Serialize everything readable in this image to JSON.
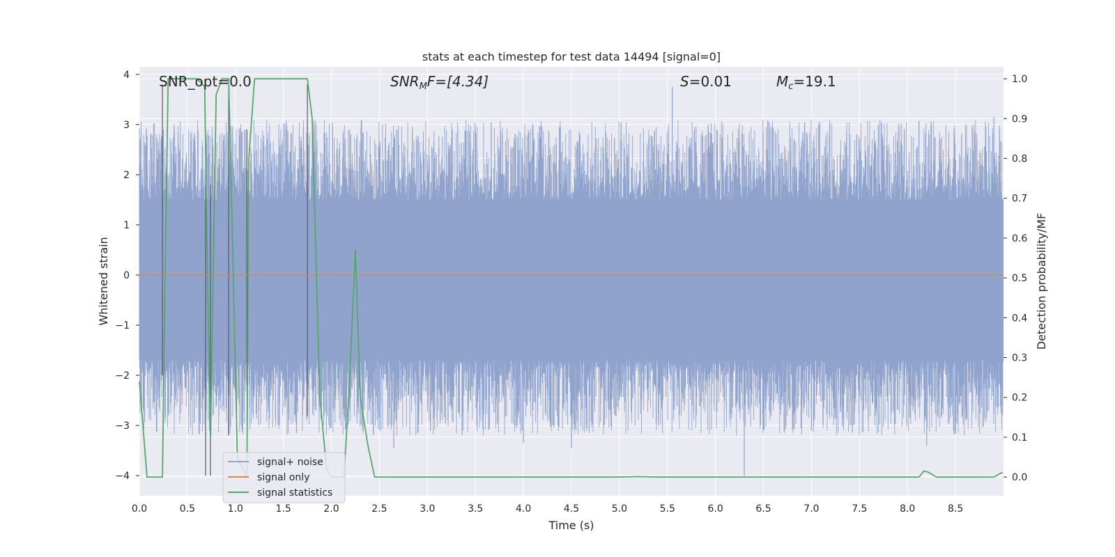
{
  "chart_data": {
    "type": "line",
    "title": "stats at each timestep for test data 14494 [signal=0]",
    "xlabel": "Time (s)",
    "ylabel": "Whitened strain",
    "ylabel_right": "Detection probability/MF",
    "xlim": [
      0.0,
      9.0
    ],
    "ylim": [
      -4.4,
      4.15
    ],
    "ylim_right": [
      -0.047,
      1.03
    ],
    "xticks": [
      0.0,
      0.5,
      1.0,
      1.5,
      2.0,
      2.5,
      3.0,
      3.5,
      4.0,
      4.5,
      5.0,
      5.5,
      6.0,
      6.5,
      7.0,
      7.5,
      8.0,
      8.5
    ],
    "xtick_labels": [
      "0.0",
      "0.5",
      "1.0",
      "1.5",
      "2.0",
      "2.5",
      "3.0",
      "3.5",
      "4.0",
      "4.5",
      "5.0",
      "5.5",
      "6.0",
      "6.5",
      "7.0",
      "7.5",
      "8.0",
      "8.5"
    ],
    "yticks": [
      4,
      3,
      2,
      1,
      0,
      -1,
      -2,
      -3,
      -4
    ],
    "ytick_labels": [
      "4",
      "3",
      "2",
      "1",
      "0",
      "−1",
      "−2",
      "−3",
      "−4"
    ],
    "yticks_right": [
      1.0,
      0.9,
      0.8,
      0.7,
      0.6,
      0.5,
      0.4,
      0.3,
      0.2,
      0.1,
      0.0
    ],
    "ytick_labels_right": [
      "1.0",
      "0.9",
      "0.8",
      "0.7",
      "0.6",
      "0.5",
      "0.4",
      "0.3",
      "0.2",
      "0.1",
      "0.0"
    ],
    "annotations": {
      "snr_opt": "SNR_opt=0.0",
      "snr_mf_prefix": "SNR",
      "snr_mf_sub": "M",
      "snr_mf_suffix": "F=[4.34]",
      "s_label": "S",
      "s_value": "=0.01",
      "mc_label": "M",
      "mc_sub": "c",
      "mc_value": "=19.1"
    },
    "legend": [
      "signal+ noise",
      "signal only",
      "signal statistics"
    ],
    "legend_loc": "lower-left",
    "noise": {
      "name": "signal+ noise",
      "color": "#8fa3cc",
      "core_min": -1.7,
      "core_max": 1.45,
      "samples": 3000,
      "extremes_x": [
        0.25,
        0.3,
        0.72,
        0.74,
        1.1,
        1.12,
        1.75,
        2.65,
        4.0,
        4.5,
        5.55,
        6.3,
        7.0,
        8.2,
        8.9
      ],
      "extremes_y": [
        2.9,
        -2.4,
        2.2,
        -2.3,
        2.9,
        -3.0,
        -2.85,
        -3.45,
        -3.35,
        -3.45,
        3.75,
        -4.0,
        -3.1,
        -3.4,
        3.15
      ],
      "black_spikes_x": [
        0.24,
        0.69,
        0.74,
        0.93,
        1.12,
        1.75
      ],
      "black_spikes_y_top": [
        3.8,
        1.8,
        1.8,
        3.8,
        2.9,
        3.8
      ],
      "black_spikes_y_bottom": [
        -2.0,
        -4.0,
        -4.0,
        -3.2,
        -2.2,
        -2.8
      ]
    },
    "signal_only": {
      "name": "signal only",
      "color": "#dd8452",
      "value": 0.0
    },
    "statistics": {
      "name": "signal statistics",
      "color": "#55a868",
      "x": [
        0.0,
        0.08,
        0.1,
        0.24,
        0.27,
        0.3,
        0.45,
        0.6,
        0.68,
        0.71,
        0.74,
        0.8,
        0.86,
        0.93,
        0.97,
        1.02,
        1.12,
        1.14,
        1.2,
        1.3,
        1.5,
        1.75,
        1.8,
        1.88,
        1.95,
        2.0,
        2.05,
        2.13,
        2.18,
        2.25,
        2.3,
        2.38,
        2.45,
        4.0,
        5.0,
        5.2,
        5.4,
        6.0,
        7.0,
        8.0,
        8.12,
        8.17,
        8.22,
        8.3,
        8.5,
        8.7,
        8.9,
        8.99
      ],
      "y": [
        0.24,
        0.0,
        0.0,
        0.0,
        0.53,
        1.0,
        1.0,
        1.0,
        0.98,
        0.5,
        0.1,
        0.96,
        1.0,
        1.0,
        0.6,
        0.05,
        0.0,
        0.8,
        1.0,
        1.0,
        1.0,
        1.0,
        0.9,
        0.2,
        0.02,
        0.0,
        0.0,
        0.0,
        0.2,
        0.57,
        0.2,
        0.08,
        0.0,
        0.0,
        0.0,
        0.001,
        0.0,
        0.0,
        0.0,
        0.0,
        0.0,
        0.015,
        0.012,
        0.0,
        0.0,
        0.0,
        0.0,
        0.012
      ]
    }
  }
}
